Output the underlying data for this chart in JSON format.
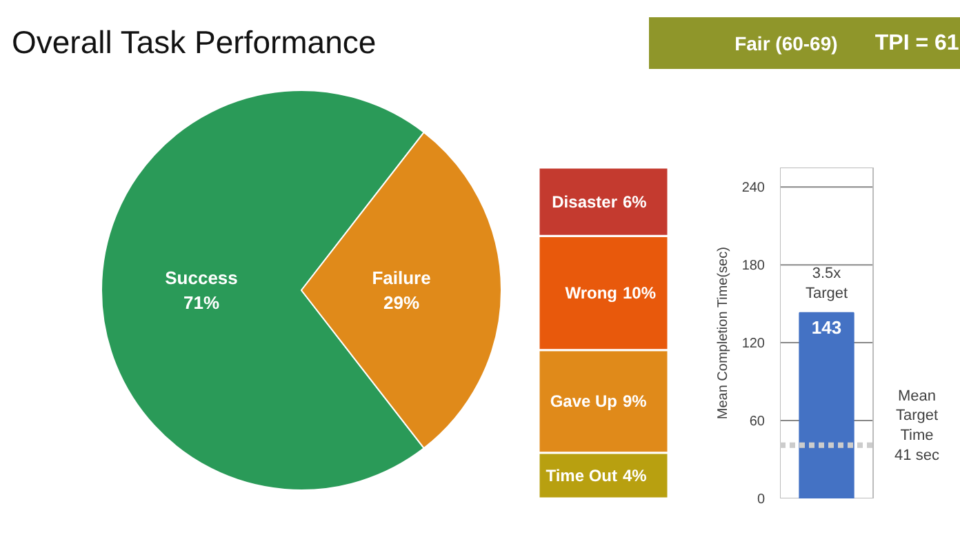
{
  "chart_data": [
    {
      "type": "pie",
      "title": "Overall Task Performance",
      "categories": [
        "Success",
        "Failure"
      ],
      "values": [
        71,
        29
      ],
      "colors": [
        "#2a9a58",
        "#e08a1a"
      ],
      "value_labels": [
        "71%",
        "29%"
      ]
    },
    {
      "type": "other",
      "annotations": [
        "Fair (60-69)",
        "TPI = 61"
      ],
      "color": "#8f962a"
    },
    {
      "type": "bar",
      "stacked": true,
      "categories": [
        null
      ],
      "series": [
        {
          "name": "Time Out",
          "color": "#b8a010",
          "values": [
            4
          ],
          "value_labels": [
            "4%"
          ]
        },
        {
          "name": "Gave Up",
          "color": "#e08a1a",
          "values": [
            9
          ],
          "value_labels": [
            "9%"
          ]
        },
        {
          "name": "Wrong",
          "color": "#e8590c",
          "values": [
            10
          ],
          "value_labels": [
            "10%"
          ]
        },
        {
          "name": "Disaster",
          "color": "#c43a2f",
          "values": [
            6
          ],
          "value_labels": [
            "6%"
          ]
        }
      ]
    },
    {
      "type": "bar",
      "categories": [
        null
      ],
      "values": [
        143
      ],
      "color": "#4472c4",
      "data_labels": true,
      "ylabel": "Mean Completion Time(sec)",
      "ylim": [
        0,
        255
      ],
      "yticks": [
        0,
        60,
        120,
        180,
        240
      ],
      "grid": "y",
      "ref_lines": [
        {
          "axis": "y",
          "value": 41,
          "label": "Mean\nTarget\nTime\n41 sec",
          "color": "#cccccc",
          "line_style": "dotted"
        }
      ],
      "annotations": [
        "3.5x\nTarget"
      ]
    }
  ]
}
